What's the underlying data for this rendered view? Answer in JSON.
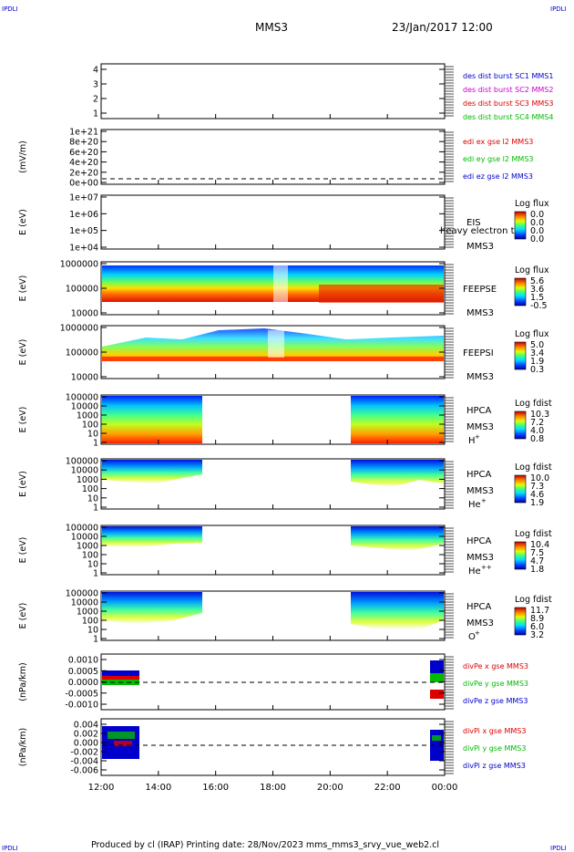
{
  "header": {
    "corner_left_top": "IPDLI",
    "corner_right_top": "IPDLI",
    "corner_left_bottom": "IPDLI",
    "corner_right_bottom": "IPDLI",
    "title": "MMS3",
    "datetime": "23/Jan/2017 12:00"
  },
  "footer": "Produced by cl (IRAP)   Printing date: 28/Nov/2023   mms_mms3_srvy_vue_web2.cl",
  "colors": {
    "blue": "#0000cc",
    "magenta": "#cc00cc",
    "red": "#dd0000",
    "green": "#00bb00"
  },
  "chart_data": {
    "type": "heatmap",
    "x_ticks": [
      "12:00",
      "14:00",
      "16:00",
      "18:00",
      "20:00",
      "22:00",
      "00:00"
    ],
    "x_range_hours": [
      12,
      24
    ],
    "panels": [
      {
        "id": "p1",
        "kind": "line",
        "yticks": [
          "4",
          "3",
          "2",
          "1"
        ],
        "legend": [
          {
            "text": "des dist burst SC1 MMS1",
            "color": "#0000cc"
          },
          {
            "text": "des dist burst SC2 MMS2",
            "color": "#cc00cc"
          },
          {
            "text": "des dist burst SC3 MMS3",
            "color": "#dd0000"
          },
          {
            "text": "des dist burst SC4 MMS4",
            "color": "#00bb00"
          }
        ]
      },
      {
        "id": "p2",
        "kind": "line",
        "ylabel": "(mV/m)",
        "yticks": [
          "1e+21",
          "8e+20",
          "6e+20",
          "4e+20",
          "2e+20",
          "0e+00"
        ],
        "legend": [
          {
            "text": "edi ex gse l2 MMS3",
            "color": "#dd0000"
          },
          {
            "text": "edi ey gse l2 MMS3",
            "color": "#00bb00"
          },
          {
            "text": "edi ez gse l2 MMS3",
            "color": "#0000cc"
          }
        ]
      },
      {
        "id": "p3",
        "kind": "spectrogram",
        "ylabel": "E (eV)",
        "yticks": [
          "1e+07",
          "1e+06",
          "1e+05",
          "1e+04"
        ],
        "instrument": [
          "EIS",
          "MMS3"
        ],
        "overlay_text": "heavy electron to",
        "cbar_title": "Log flux",
        "cbar_ticks": [
          "0.0",
          "0.0",
          "0.0",
          "0.0"
        ]
      },
      {
        "id": "p4",
        "kind": "spectrogram",
        "ylabel": "E (eV)",
        "yticks": [
          "1000000",
          "100000",
          "10000"
        ],
        "instrument": [
          "FEEPSE",
          "MMS3"
        ],
        "cbar_title": "Log flux",
        "cbar_ticks": [
          "5.6",
          "3.6",
          "1.5",
          "-0.5"
        ]
      },
      {
        "id": "p5",
        "kind": "spectrogram",
        "ylabel": "E (eV)",
        "yticks": [
          "1000000",
          "100000",
          "10000"
        ],
        "instrument": [
          "FEEPSI",
          "MMS3"
        ],
        "cbar_title": "Log flux",
        "cbar_ticks": [
          "5.0",
          "3.4",
          "1.9",
          "0.3"
        ]
      },
      {
        "id": "p6",
        "kind": "spectrogram",
        "ylabel": "E (eV)",
        "yticks": [
          "100000",
          "10000",
          "1000",
          "100",
          "10",
          "1"
        ],
        "instrument": [
          "HPCA",
          "MMS3"
        ],
        "species": "H",
        "charge": "+",
        "cbar_title": "Log fdist",
        "cbar_ticks": [
          "10.3",
          "7.2",
          "4.0",
          "0.8"
        ]
      },
      {
        "id": "p7",
        "kind": "spectrogram",
        "ylabel": "E (eV)",
        "yticks": [
          "100000",
          "10000",
          "1000",
          "100",
          "10",
          "1"
        ],
        "instrument": [
          "HPCA",
          "MMS3"
        ],
        "species": "He",
        "charge": "+",
        "cbar_title": "Log fdist",
        "cbar_ticks": [
          "10.0",
          "7.3",
          "4.6",
          "1.9"
        ]
      },
      {
        "id": "p8",
        "kind": "spectrogram",
        "ylabel": "E (eV)",
        "yticks": [
          "100000",
          "10000",
          "1000",
          "100",
          "10",
          "1"
        ],
        "instrument": [
          "HPCA",
          "MMS3"
        ],
        "species": "He",
        "charge": "++",
        "cbar_title": "Log fdist",
        "cbar_ticks": [
          "10.4",
          "7.5",
          "4.7",
          "1.8"
        ]
      },
      {
        "id": "p9",
        "kind": "spectrogram",
        "ylabel": "E (eV)",
        "yticks": [
          "100000",
          "10000",
          "1000",
          "100",
          "10",
          "1"
        ],
        "instrument": [
          "HPCA",
          "MMS3"
        ],
        "species": "O",
        "charge": "+",
        "cbar_title": "Log fdist",
        "cbar_ticks": [
          "11.7",
          "8.9",
          "6.0",
          "3.2"
        ]
      },
      {
        "id": "p10",
        "kind": "line",
        "ylabel": "(nPa/km)",
        "yticks": [
          "0.0010",
          "0.0005",
          "0.0000",
          "-0.0005",
          "-0.0010"
        ],
        "legend": [
          {
            "text": "divPe x gse MMS3",
            "color": "#dd0000"
          },
          {
            "text": "divPe y gse MMS3",
            "color": "#00bb00"
          },
          {
            "text": "divPe z gse MMS3",
            "color": "#0000cc"
          }
        ]
      },
      {
        "id": "p11",
        "kind": "line",
        "ylabel": "(nPa/km)",
        "yticks": [
          "0.004",
          "0.002",
          "0.000",
          "-0.002",
          "-0.004",
          "-0.006"
        ],
        "legend": [
          {
            "text": "divPi x gse MMS3",
            "color": "#dd0000"
          },
          {
            "text": "divPi y gse MMS3",
            "color": "#00bb00"
          },
          {
            "text": "divPi z gse MMS3",
            "color": "#0000cc"
          }
        ]
      }
    ]
  }
}
